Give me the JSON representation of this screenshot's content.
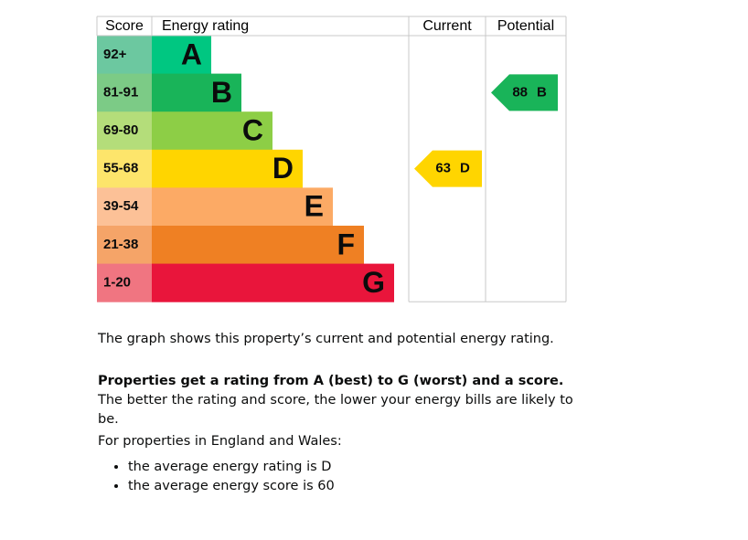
{
  "header": {
    "score": "Score",
    "rating": "Energy rating",
    "current": "Current",
    "potential": "Potential"
  },
  "bands": [
    {
      "range": "92+",
      "letter": "A"
    },
    {
      "range": "81-91",
      "letter": "B"
    },
    {
      "range": "69-80",
      "letter": "C"
    },
    {
      "range": "55-68",
      "letter": "D"
    },
    {
      "range": "39-54",
      "letter": "E"
    },
    {
      "range": "21-38",
      "letter": "F"
    },
    {
      "range": "1-20",
      "letter": "G"
    }
  ],
  "current": {
    "score": 63,
    "letter": "D"
  },
  "potential": {
    "score": 88,
    "letter": "B"
  },
  "text": {
    "intro": "The graph shows this property’s current and potential energy rating.",
    "rating_bold": "Properties get a rating from A (best) to G (worst) and a score.",
    "rating_rest": " The better the rating and score, the lower your energy bills are likely to be.",
    "region": "For properties in England and Wales:",
    "bullets": [
      "the average energy rating is D",
      "the average energy score is 60"
    ]
  }
}
